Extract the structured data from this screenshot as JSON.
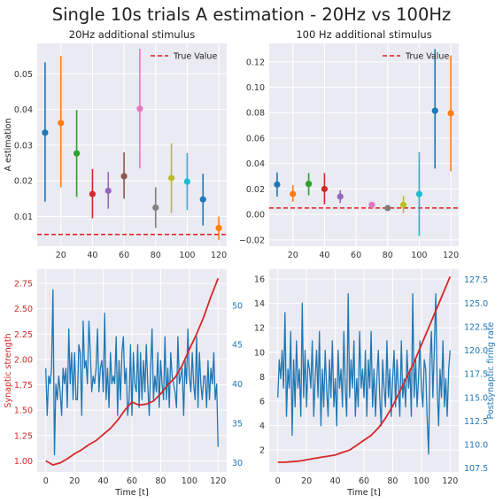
{
  "suptitle": "Single 10s trials A estimation - 20Hz vs 100Hz",
  "palette": [
    "#1f77b4",
    "#ff7f0e",
    "#2ca02c",
    "#d62728",
    "#9467bd",
    "#8c564b",
    "#e377c2",
    "#7f7f7f",
    "#bcbd22",
    "#17becf",
    "#1f77b4",
    "#ff7f0e"
  ],
  "chart_data": [
    {
      "type": "errorbar",
      "title": "20Hz additional stimulus",
      "xlabel": "",
      "ylabel": "A estimation",
      "xlim": [
        5,
        125
      ],
      "ylim": [
        0.0017,
        0.0585
      ],
      "xticks": [
        20,
        40,
        60,
        80,
        100,
        120
      ],
      "yticks": [
        0.01,
        0.02,
        0.03,
        0.04,
        0.05
      ],
      "ytick_labels": [
        "0.01",
        "0.02",
        "0.03",
        "0.04",
        "0.05"
      ],
      "grid": true,
      "legend": {
        "label": "True Value",
        "placement": "top-right"
      },
      "true_value": 0.005,
      "points": [
        {
          "x": 10,
          "y": 0.0335,
          "lo": 0.0142,
          "hi": 0.0532
        },
        {
          "x": 20,
          "y": 0.0362,
          "lo": 0.0182,
          "hi": 0.055
        },
        {
          "x": 30,
          "y": 0.0277,
          "lo": 0.0155,
          "hi": 0.0398
        },
        {
          "x": 40,
          "y": 0.0163,
          "lo": 0.0095,
          "hi": 0.0233
        },
        {
          "x": 50,
          "y": 0.0172,
          "lo": 0.0122,
          "hi": 0.0225
        },
        {
          "x": 60,
          "y": 0.0213,
          "lo": 0.015,
          "hi": 0.028
        },
        {
          "x": 70,
          "y": 0.0402,
          "lo": 0.0235,
          "hi": 0.057
        },
        {
          "x": 80,
          "y": 0.0125,
          "lo": 0.0068,
          "hi": 0.0182
        },
        {
          "x": 90,
          "y": 0.0208,
          "lo": 0.011,
          "hi": 0.0305
        },
        {
          "x": 100,
          "y": 0.0198,
          "lo": 0.0118,
          "hi": 0.0278
        },
        {
          "x": 110,
          "y": 0.0148,
          "lo": 0.0075,
          "hi": 0.022
        },
        {
          "x": 120,
          "y": 0.0068,
          "lo": 0.0035,
          "hi": 0.01
        }
      ]
    },
    {
      "type": "errorbar",
      "title": "100 Hz additional stimulus",
      "xlabel": "",
      "ylabel": "",
      "xlim": [
        5,
        125
      ],
      "ylim": [
        -0.025,
        0.1345
      ],
      "xticks": [
        20,
        40,
        60,
        80,
        100,
        120
      ],
      "yticks": [
        -0.02,
        0.0,
        0.02,
        0.04,
        0.06,
        0.08,
        0.1,
        0.12
      ],
      "ytick_labels": [
        "−0.02",
        "0.00",
        "0.02",
        "0.04",
        "0.06",
        "0.08",
        "0.10",
        "0.12"
      ],
      "grid": true,
      "legend": {
        "label": "True Value",
        "placement": "top-right"
      },
      "true_value": 0.005,
      "points": [
        {
          "x": 10,
          "y": 0.0235,
          "lo": 0.014,
          "hi": 0.033
        },
        {
          "x": 20,
          "y": 0.016,
          "lo": 0.01,
          "hi": 0.023
        },
        {
          "x": 30,
          "y": 0.024,
          "lo": 0.015,
          "hi": 0.0325
        },
        {
          "x": 40,
          "y": 0.02,
          "lo": 0.008,
          "hi": 0.0325
        },
        {
          "x": 50,
          "y": 0.014,
          "lo": 0.009,
          "hi": 0.019
        },
        {
          "x": 70,
          "y": 0.0075,
          "lo": 0.0065,
          "hi": 0.0085
        },
        {
          "x": 80,
          "y": 0.005,
          "lo": 0.004,
          "hi": 0.006
        },
        {
          "x": 90,
          "y": 0.0075,
          "lo": 0.001,
          "hi": 0.0145
        },
        {
          "x": 100,
          "y": 0.016,
          "lo": -0.017,
          "hi": 0.049
        },
        {
          "x": 110,
          "y": 0.0815,
          "lo": 0.036,
          "hi": 0.13
        },
        {
          "x": 120,
          "y": 0.0795,
          "lo": 0.034,
          "hi": 0.125
        }
      ]
    },
    {
      "type": "line",
      "title": "",
      "xlabel": "Time [t]",
      "ylabel": "Synaptic strength",
      "ylabel_right": "",
      "xlim": [
        -6,
        126
      ],
      "ylim": [
        0.89,
        2.89
      ],
      "xticks": [
        0,
        20,
        40,
        60,
        80,
        100,
        120
      ],
      "yticks": [
        1.0,
        1.25,
        1.5,
        1.75,
        2.0,
        2.25,
        2.5,
        2.75
      ],
      "ytick_labels": [
        "1.00",
        "1.25",
        "1.50",
        "1.75",
        "2.00",
        "2.25",
        "2.50",
        "2.75"
      ],
      "ylim_right": [
        28.8,
        54.6
      ],
      "yticks_right": [
        30,
        35,
        40,
        45,
        50
      ],
      "ytick_labels_right": [
        "30",
        "35",
        "40",
        "45",
        "50"
      ],
      "grid": true,
      "series": [
        {
          "axis": "left",
          "color": "#d62728",
          "x": [
            0,
            5,
            10,
            15,
            20,
            25,
            30,
            35,
            40,
            45,
            50,
            55,
            60,
            65,
            70,
            75,
            80,
            85,
            90,
            95,
            100,
            105,
            110,
            115,
            120
          ],
          "y": [
            1.0,
            0.96,
            0.98,
            1.02,
            1.07,
            1.11,
            1.16,
            1.2,
            1.26,
            1.32,
            1.4,
            1.5,
            1.58,
            1.55,
            1.56,
            1.59,
            1.66,
            1.75,
            1.82,
            1.94,
            2.1,
            2.25,
            2.42,
            2.62,
            2.8
          ]
        },
        {
          "axis": "right",
          "color": "#1f77b4",
          "x": [
            0,
            1,
            2,
            3,
            4,
            5,
            6,
            7,
            8,
            9,
            10,
            11,
            12,
            13,
            14,
            15,
            16,
            17,
            18,
            19,
            20,
            21,
            22,
            23,
            24,
            25,
            26,
            27,
            28,
            29,
            30,
            31,
            32,
            33,
            34,
            35,
            36,
            37,
            38,
            39,
            40,
            41,
            42,
            43,
            44,
            45,
            46,
            47,
            48,
            49,
            50,
            51,
            52,
            53,
            54,
            55,
            56,
            57,
            58,
            59,
            60,
            61,
            62,
            63,
            64,
            65,
            66,
            67,
            68,
            69,
            70,
            71,
            72,
            73,
            74,
            75,
            76,
            77,
            78,
            79,
            80,
            81,
            82,
            83,
            84,
            85,
            86,
            87,
            88,
            89,
            90,
            91,
            92,
            93,
            94,
            95,
            96,
            97,
            98,
            99,
            100,
            101,
            102,
            103,
            104,
            105,
            106,
            107,
            108,
            109,
            110,
            111,
            112,
            113,
            114,
            115,
            116,
            117,
            118,
            119,
            120
          ],
          "y": [
            42,
            36,
            41,
            40,
            42,
            52,
            31,
            40,
            38,
            41,
            39,
            36,
            42,
            40,
            42,
            37,
            47,
            40,
            44,
            38,
            44,
            38,
            38,
            45,
            44,
            36,
            48,
            42,
            43,
            40,
            48,
            44,
            39,
            41,
            40,
            42,
            47,
            39,
            42,
            43,
            39,
            49,
            38,
            42,
            37,
            44,
            40,
            41,
            40,
            46,
            36,
            43,
            38,
            44,
            46,
            40,
            42,
            36,
            38,
            45,
            36,
            44,
            40,
            39,
            45,
            37,
            44,
            38,
            43,
            39,
            45,
            40,
            36,
            42,
            47,
            38,
            41,
            39,
            44,
            37,
            43,
            40,
            38,
            46,
            38,
            42,
            37,
            44,
            41,
            40,
            39,
            37,
            46,
            40,
            41,
            42,
            36,
            43,
            40,
            47,
            41,
            39,
            44,
            40,
            38,
            46,
            37,
            44,
            40,
            38,
            41,
            41,
            37,
            43,
            38,
            42,
            40,
            44,
            38,
            40,
            32
          ]
        }
      ]
    },
    {
      "type": "line",
      "title": "",
      "xlabel": "Time [t]",
      "ylabel": "",
      "ylabel_right": "Postsynaptic firing rate",
      "xlim": [
        -6,
        126
      ],
      "ylim": [
        0.2,
        16.8
      ],
      "xticks": [
        0,
        20,
        40,
        60,
        80,
        100,
        120
      ],
      "yticks": [
        2,
        4,
        6,
        8,
        10,
        12,
        14,
        16
      ],
      "ytick_labels": [
        "2",
        "4",
        "6",
        "8",
        "10",
        "12",
        "14",
        "16"
      ],
      "ylim_right": [
        107.1,
        128.6
      ],
      "yticks_right": [
        107.5,
        110.0,
        112.5,
        115.0,
        117.5,
        120.0,
        122.5,
        125.0,
        127.5
      ],
      "ytick_labels_right": [
        "107.5",
        "110.0",
        "112.5",
        "115.0",
        "117.5",
        "120.0",
        "122.5",
        "125.0",
        "127.5"
      ],
      "grid": true,
      "series": [
        {
          "axis": "left",
          "color": "#d62728",
          "x": [
            0,
            5,
            10,
            15,
            20,
            25,
            30,
            35,
            40,
            45,
            50,
            55,
            60,
            65,
            70,
            75,
            80,
            85,
            90,
            95,
            100,
            105,
            110,
            115,
            120
          ],
          "y": [
            1.0,
            1.0,
            1.05,
            1.1,
            1.2,
            1.3,
            1.4,
            1.5,
            1.6,
            1.8,
            2.0,
            2.4,
            2.8,
            3.2,
            3.8,
            4.6,
            5.6,
            6.8,
            8.0,
            9.2,
            10.6,
            12.0,
            13.4,
            14.8,
            16.2
          ]
        },
        {
          "axis": "right",
          "color": "#1f77b4",
          "x": [
            0,
            1,
            2,
            3,
            4,
            5,
            6,
            7,
            8,
            9,
            10,
            11,
            12,
            13,
            14,
            15,
            16,
            17,
            18,
            19,
            20,
            21,
            22,
            23,
            24,
            25,
            26,
            27,
            28,
            29,
            30,
            31,
            32,
            33,
            34,
            35,
            36,
            37,
            38,
            39,
            40,
            41,
            42,
            43,
            44,
            45,
            46,
            47,
            48,
            49,
            50,
            51,
            52,
            53,
            54,
            55,
            56,
            57,
            58,
            59,
            60,
            61,
            62,
            63,
            64,
            65,
            66,
            67,
            68,
            69,
            70,
            71,
            72,
            73,
            74,
            75,
            76,
            77,
            78,
            79,
            80,
            81,
            82,
            83,
            84,
            85,
            86,
            87,
            88,
            89,
            90,
            91,
            92,
            93,
            94,
            95,
            96,
            97,
            98,
            99,
            100,
            101,
            102,
            103,
            104,
            105,
            106,
            107,
            108,
            109,
            110,
            111,
            112,
            113,
            114,
            115,
            116,
            117,
            118,
            119,
            120
          ],
          "y": [
            115,
            119,
            117,
            120,
            116,
            124,
            113,
            118,
            116,
            122,
            111,
            119,
            114,
            121,
            116,
            118,
            113,
            125,
            115,
            120,
            114,
            119,
            118,
            116,
            121,
            113,
            117,
            120,
            115,
            122,
            112,
            118,
            114,
            120,
            116,
            113,
            119,
            115,
            121,
            114,
            117,
            112,
            120,
            116,
            118,
            114,
            122,
            116,
            113,
            126,
            115,
            119,
            116,
            121,
            113,
            117,
            114,
            122,
            116,
            118,
            115,
            120,
            113,
            119,
            116,
            122,
            114,
            118,
            113,
            117,
            120,
            115,
            112,
            119,
            116,
            114,
            121,
            115,
            118,
            113,
            117,
            120,
            114,
            119,
            116,
            113,
            121,
            115,
            117,
            114,
            120,
            116,
            118,
            113,
            126,
            115,
            119,
            114,
            117,
            121,
            116,
            114,
            119,
            118,
            113,
            109,
            119,
            122,
            115,
            120,
            126,
            116,
            112,
            118,
            115,
            121,
            114,
            117,
            113,
            118,
            120
          ]
        }
      ]
    }
  ]
}
